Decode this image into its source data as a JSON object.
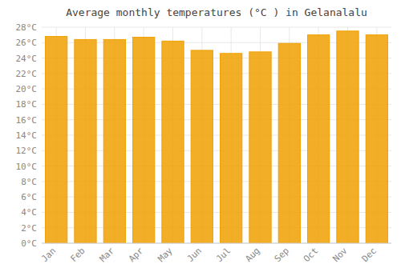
{
  "chart_data": {
    "type": "bar",
    "title": "Average monthly temperatures (°C ) in Gelanalalu",
    "categories": [
      "Jan",
      "Feb",
      "Mar",
      "Apr",
      "May",
      "Jun",
      "Jul",
      "Aug",
      "Sep",
      "Oct",
      "Nov",
      "Dec"
    ],
    "values": [
      26.8,
      26.4,
      26.4,
      26.7,
      26.2,
      25.0,
      24.6,
      24.8,
      25.9,
      27.0,
      27.5,
      27.0
    ],
    "color": "#F0A000",
    "ylim": [
      0,
      28
    ],
    "yticks": [
      {
        "value": 0,
        "label": "0°C"
      },
      {
        "value": 2,
        "label": "2°C"
      },
      {
        "value": 4,
        "label": "4°C"
      },
      {
        "value": 6,
        "label": "6°C"
      },
      {
        "value": 8,
        "label": "8°C"
      },
      {
        "value": 10,
        "label": "10°C"
      },
      {
        "value": 12,
        "label": "12°C"
      },
      {
        "value": 14,
        "label": "14°C"
      },
      {
        "value": 16,
        "label": "16°C"
      },
      {
        "value": 18,
        "label": "18°C"
      },
      {
        "value": 20,
        "label": "20°C"
      },
      {
        "value": 22,
        "label": "22°C"
      },
      {
        "value": 24,
        "label": "24°C"
      },
      {
        "value": 26,
        "label": "26°C"
      },
      {
        "value": 28,
        "label": "28°C"
      }
    ],
    "grid": true
  }
}
